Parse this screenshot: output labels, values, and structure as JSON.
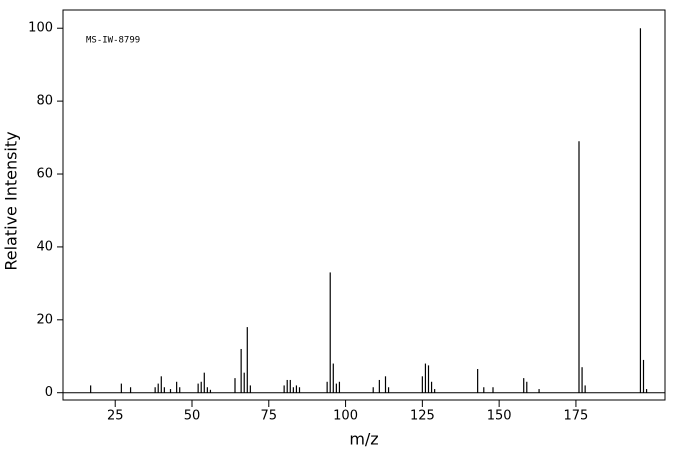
{
  "chart_data": {
    "type": "bar",
    "annotation": "MS-IW-8799",
    "xlabel": "m/z",
    "ylabel": "Relative Intensity",
    "x": [
      17,
      27,
      30,
      38,
      39,
      40,
      41,
      43,
      45,
      46,
      52,
      53,
      54,
      55,
      56,
      64,
      66,
      67,
      68,
      69,
      80,
      81,
      82,
      83,
      84,
      85,
      94,
      95,
      96,
      97,
      98,
      109,
      111,
      113,
      114,
      125,
      126,
      127,
      128,
      129,
      143,
      145,
      148,
      158,
      159,
      163,
      176,
      177,
      178,
      196,
      197,
      198
    ],
    "values": [
      2,
      2.5,
      1.5,
      1.5,
      2.5,
      4.5,
      1.5,
      1,
      3,
      1.5,
      2.5,
      3,
      5.5,
      1.5,
      0.8,
      4,
      12,
      5.5,
      18,
      2,
      2,
      3.5,
      3.5,
      1.5,
      2,
      1.5,
      3,
      33,
      8,
      2.5,
      3,
      1.5,
      3.5,
      4.5,
      1.5,
      4.5,
      8,
      7.5,
      3,
      1,
      6.5,
      1.5,
      1.5,
      4,
      3,
      1,
      69,
      7,
      2,
      100,
      9,
      1
    ],
    "color": "#000000",
    "xlim": [
      8,
      204
    ],
    "ylim": [
      -2,
      105
    ],
    "xticks": [
      25,
      50,
      75,
      100,
      125,
      150,
      175
    ],
    "yticks": [
      0,
      20,
      40,
      60,
      80,
      100
    ]
  }
}
